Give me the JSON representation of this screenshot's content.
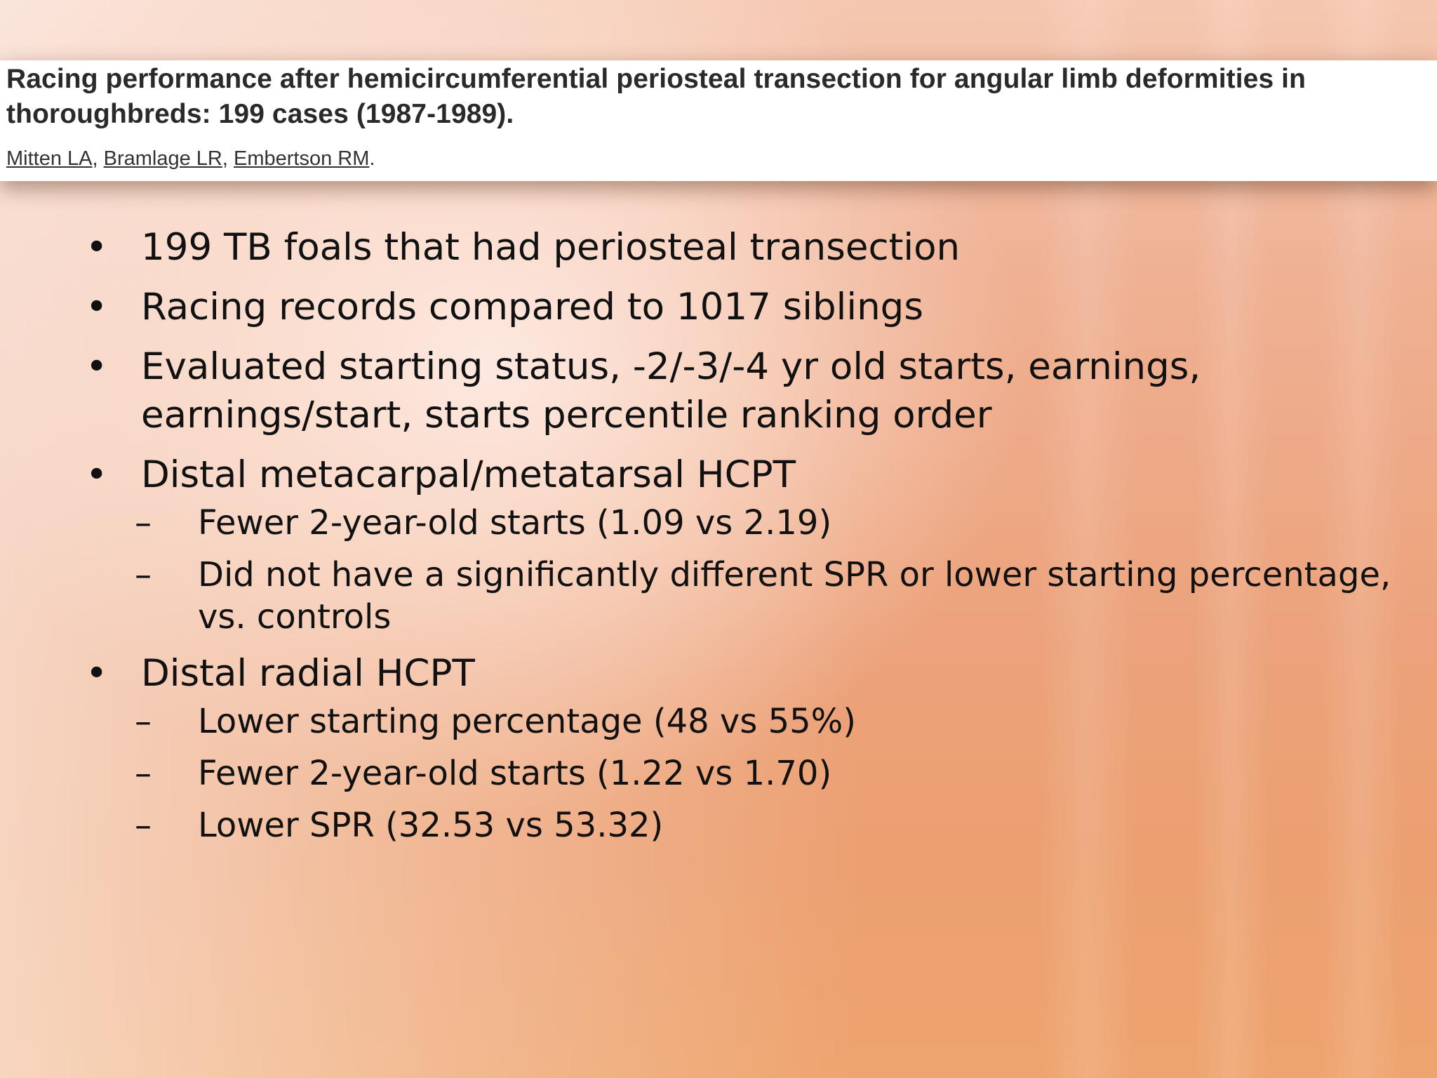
{
  "citation": {
    "title": "Racing performance after hemicircumferential periosteal transection for angular limb deformities in thoroughbreds: 199 cases (1987-1989).",
    "authors": [
      {
        "name": "Mitten LA",
        "sep": ", "
      },
      {
        "name": "Bramlage LR",
        "sep": ", "
      },
      {
        "name": "Embertson RM",
        "sep": "."
      }
    ]
  },
  "bullets": [
    {
      "text": "199 TB foals that had periosteal transection",
      "sub": []
    },
    {
      "text": "Racing records compared to 1017 siblings",
      "sub": []
    },
    {
      "text": "Evaluated starting status, -2/-3/-4 yr old starts, earnings, earnings/start, starts percentile ranking order",
      "sub": []
    },
    {
      "text": "Distal metacarpal/metatarsal HCPT",
      "sub": [
        "Fewer 2-year-old starts (1.09 vs 2.19)",
        "Did not have a significantly different SPR or lower starting percentage, vs. controls"
      ]
    },
    {
      "text": "Distal radial HCPT",
      "sub": [
        "Lower starting percentage (48 vs 55%)",
        "Fewer 2-year-old starts (1.22 vs 1.70)",
        "Lower SPR (32.53 vs 53.32)"
      ]
    }
  ],
  "glyphs": {
    "bullet": "•",
    "dash": "–"
  },
  "colors": {
    "background": "#eca574",
    "citation_band": "#ffffff",
    "text": "#111111"
  }
}
